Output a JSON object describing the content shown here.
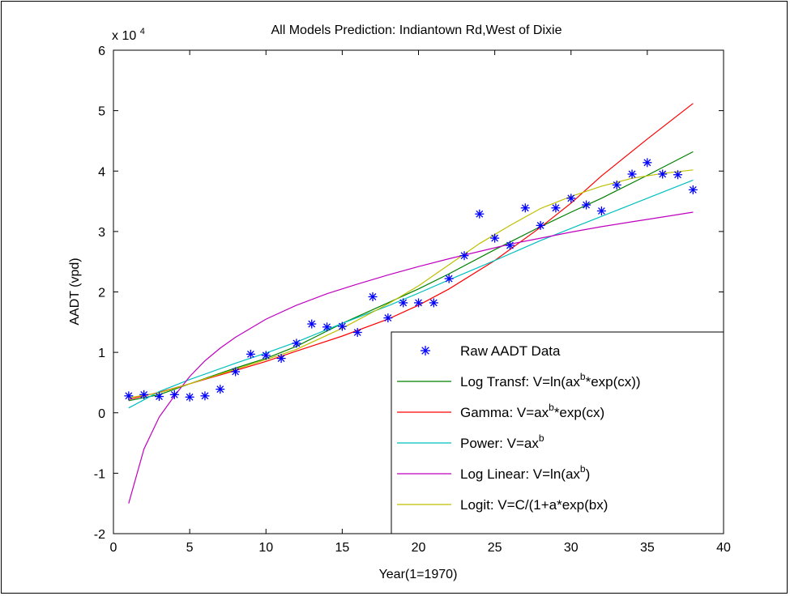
{
  "chart_data": {
    "type": "line",
    "title": "All Models Prediction: Indiantown Rd,West of Dixie",
    "xlabel": "Year(1=1970)",
    "ylabel": "AADT (vpd)",
    "y_multiplier_label": "x 10",
    "y_multiplier_exponent": "4",
    "xlim": [
      0,
      40
    ],
    "ylim": [
      -2,
      6
    ],
    "x_ticks": [
      "0",
      "5",
      "10",
      "15",
      "20",
      "25",
      "30",
      "35",
      "40"
    ],
    "y_ticks": [
      "-2",
      "-1",
      "0",
      "1",
      "2",
      "3",
      "4",
      "5",
      "6"
    ],
    "grid": false,
    "legend_position": "bottom-right",
    "raw_data": {
      "name": "Raw AADT Data",
      "color": "#0000ff",
      "marker": "asterisk",
      "x": [
        1,
        2,
        3,
        4,
        5,
        6,
        7,
        8,
        9,
        10,
        11,
        12,
        13,
        14,
        15,
        16,
        17,
        18,
        19,
        20,
        21,
        22,
        23,
        24,
        25,
        26,
        27,
        28,
        29,
        30,
        31,
        32,
        33,
        34,
        35,
        36,
        37,
        38
      ],
      "y": [
        0.28,
        0.3,
        0.27,
        0.3,
        0.26,
        0.28,
        0.39,
        0.68,
        0.97,
        0.95,
        0.9,
        1.15,
        1.47,
        1.42,
        1.43,
        1.33,
        1.92,
        1.57,
        1.82,
        1.82,
        1.82,
        2.22,
        2.6,
        3.29,
        2.89,
        2.77,
        3.39,
        3.1,
        3.39,
        3.55,
        3.44,
        3.34,
        3.77,
        3.95,
        4.14,
        3.95,
        3.94,
        3.69
      ]
    },
    "series": [
      {
        "name_parts": [
          "Log Transf: V=ln(ax",
          "b",
          "*exp(cx))"
        ],
        "color": "#008000",
        "x": [
          1,
          3,
          5,
          8,
          10,
          12,
          15,
          18,
          20,
          22,
          25,
          28,
          30,
          32,
          35,
          38
        ],
        "y": [
          0.2,
          0.3,
          0.48,
          0.74,
          0.9,
          1.1,
          1.48,
          1.82,
          2.05,
          2.3,
          2.7,
          3.08,
          3.32,
          3.55,
          3.93,
          4.32
        ]
      },
      {
        "name_parts": [
          "Gamma: V=ax",
          "b",
          "*exp(cx)"
        ],
        "color": "#ff0000",
        "x": [
          1,
          3,
          5,
          8,
          10,
          12,
          15,
          18,
          20,
          22,
          25,
          28,
          30,
          32,
          35,
          38
        ],
        "y": [
          0.22,
          0.34,
          0.48,
          0.7,
          0.85,
          1.02,
          1.27,
          1.55,
          1.78,
          2.05,
          2.52,
          3.07,
          3.47,
          3.92,
          4.53,
          5.12
        ]
      },
      {
        "name_parts": [
          "Power: V=ax",
          "b",
          ""
        ],
        "color": "#00bfbf",
        "x": [
          1,
          3,
          5,
          8,
          10,
          12,
          15,
          18,
          20,
          22,
          25,
          28,
          30,
          32,
          35,
          38
        ],
        "y": [
          0.08,
          0.35,
          0.55,
          0.82,
          0.99,
          1.17,
          1.48,
          1.77,
          1.98,
          2.2,
          2.52,
          2.85,
          3.05,
          3.25,
          3.55,
          3.85
        ]
      },
      {
        "name_parts": [
          "Log Linear: V=ln(ax",
          "b",
          ")"
        ],
        "color": "#bf00bf",
        "x": [
          1,
          2,
          3,
          4,
          5,
          6,
          7,
          8,
          10,
          12,
          14,
          16,
          18,
          20,
          22,
          24,
          26,
          28,
          30,
          32,
          34,
          36,
          38
        ],
        "y": [
          -1.5,
          -0.6,
          -0.07,
          0.28,
          0.6,
          0.86,
          1.07,
          1.25,
          1.55,
          1.78,
          1.97,
          2.13,
          2.28,
          2.42,
          2.55,
          2.67,
          2.79,
          2.89,
          2.99,
          3.08,
          3.16,
          3.24,
          3.32
        ]
      },
      {
        "name_parts": [
          "Logit: V=C/(1+a*exp(bx)",
          "",
          ""
        ],
        "color": "#bfbf00",
        "x": [
          1,
          3,
          5,
          8,
          10,
          12,
          15,
          18,
          20,
          22,
          24,
          26,
          28,
          30,
          32,
          34,
          36,
          38
        ],
        "y": [
          0.25,
          0.33,
          0.48,
          0.72,
          0.88,
          1.05,
          1.4,
          1.8,
          2.1,
          2.45,
          2.8,
          3.1,
          3.38,
          3.58,
          3.75,
          3.88,
          3.96,
          4.02
        ]
      }
    ]
  }
}
